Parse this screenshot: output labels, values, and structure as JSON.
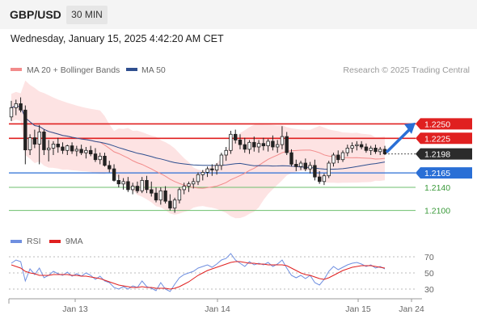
{
  "header": {
    "symbol": "GBP/USD",
    "timeframe": "30 MIN",
    "datetime": "Wednesday, January 15, 2025 4:42:20 AM CET"
  },
  "legend": {
    "ma20_bb": "MA 20 + Bollinger Bands",
    "ma50": "MA 50",
    "copyright": "Research © 2025 Trading Central",
    "rsi": "RSI",
    "rsi_ma": "9MA"
  },
  "colors": {
    "up_candle": "#ffffff",
    "down_candle": "#222222",
    "bollinger_fill": "#fde3e3",
    "ma20": "#f28b8b",
    "ma50": "#2f4f8f",
    "resistance": "#e02020",
    "support_blue": "#2a6fd6",
    "support_green": "#6dbf6d",
    "last_price": "#2b2b2b",
    "arrow": "#2a6fd6",
    "rsi": "#6f8fe0",
    "rsi_ma": "#e02020"
  },
  "chart_data": [
    {
      "type": "candlestick",
      "ylim": [
        2.084,
        1.2308
      ],
      "price_range": [
        1.207,
        1.2308
      ],
      "levels": [
        {
          "label": "1.2250",
          "value": 1.225,
          "kind": "resistance"
        },
        {
          "label": "1.2225",
          "value": 1.2225,
          "kind": "resistance"
        },
        {
          "label": "1.2198",
          "value": 1.2198,
          "kind": "last"
        },
        {
          "label": "1.2165",
          "value": 1.2165,
          "kind": "support_blue"
        },
        {
          "label": "1.2140",
          "value": 1.214,
          "kind": "support_green"
        },
        {
          "label": "1.2100",
          "value": 1.21,
          "kind": "support_green"
        }
      ],
      "x_labels": [
        "Jan 13",
        "Jan 14",
        "Jan 15",
        "Jan 24"
      ],
      "ohlc_approx": [
        [
          1.2262,
          1.229,
          1.2255,
          1.2278
        ],
        [
          1.2278,
          1.2292,
          1.2265,
          1.2285
        ],
        [
          1.2285,
          1.2296,
          1.227,
          1.2274
        ],
        [
          1.2274,
          1.2282,
          1.218,
          1.2205
        ],
        [
          1.2205,
          1.2232,
          1.2196,
          1.2226
        ],
        [
          1.2226,
          1.224,
          1.2208,
          1.2215
        ],
        [
          1.2215,
          1.2248,
          1.218,
          1.2236
        ],
        [
          1.2236,
          1.224,
          1.2196,
          1.2205
        ],
        [
          1.2205,
          1.2222,
          1.2185,
          1.2208
        ],
        [
          1.2208,
          1.222,
          1.2196,
          1.2215
        ],
        [
          1.2215,
          1.2226,
          1.22,
          1.221
        ],
        [
          1.221,
          1.2218,
          1.2198,
          1.2204
        ],
        [
          1.2204,
          1.2214,
          1.2196,
          1.2212
        ],
        [
          1.2212,
          1.2218,
          1.2198,
          1.2203
        ],
        [
          1.2203,
          1.2212,
          1.2194,
          1.2206
        ],
        [
          1.2206,
          1.2214,
          1.2196,
          1.22
        ],
        [
          1.22,
          1.221,
          1.219,
          1.2204
        ],
        [
          1.2204,
          1.2212,
          1.2194,
          1.2198
        ],
        [
          1.2198,
          1.2208,
          1.2184,
          1.2188
        ],
        [
          1.2188,
          1.22,
          1.218,
          1.2194
        ],
        [
          1.2194,
          1.22,
          1.2176,
          1.2178
        ],
        [
          1.2178,
          1.2186,
          1.2166,
          1.2172
        ],
        [
          1.2172,
          1.218,
          1.215,
          1.2152
        ],
        [
          1.2152,
          1.2162,
          1.214,
          1.2146
        ],
        [
          1.2146,
          1.2156,
          1.2136,
          1.215
        ],
        [
          1.215,
          1.2158,
          1.2132,
          1.2136
        ],
        [
          1.2136,
          1.2148,
          1.2128,
          1.2142
        ],
        [
          1.2142,
          1.215,
          1.213,
          1.2134
        ],
        [
          1.2134,
          1.2158,
          1.213,
          1.2152
        ],
        [
          1.2152,
          1.216,
          1.213,
          1.2136
        ],
        [
          1.2136,
          1.215,
          1.2124,
          1.213
        ],
        [
          1.213,
          1.214,
          1.2114,
          1.2118
        ],
        [
          1.2118,
          1.214,
          1.211,
          1.2134
        ],
        [
          1.2134,
          1.2142,
          1.2112,
          1.2116
        ],
        [
          1.2116,
          1.2128,
          1.21,
          1.2104
        ],
        [
          1.2104,
          1.2122,
          1.2096,
          1.2118
        ],
        [
          1.2118,
          1.214,
          1.2112,
          1.2136
        ],
        [
          1.2136,
          1.2148,
          1.2128,
          1.2142
        ],
        [
          1.2142,
          1.215,
          1.2132,
          1.2146
        ],
        [
          1.2146,
          1.2156,
          1.2138,
          1.215
        ],
        [
          1.215,
          1.2166,
          1.2144,
          1.2162
        ],
        [
          1.2162,
          1.217,
          1.2152,
          1.2166
        ],
        [
          1.2166,
          1.2176,
          1.2158,
          1.2172
        ],
        [
          1.2172,
          1.218,
          1.216,
          1.217
        ],
        [
          1.217,
          1.2182,
          1.2162,
          1.2178
        ],
        [
          1.2178,
          1.22,
          1.217,
          1.2196
        ],
        [
          1.2196,
          1.221,
          1.2186,
          1.2204
        ],
        [
          1.2204,
          1.2238,
          1.2198,
          1.2232
        ],
        [
          1.2232,
          1.224,
          1.2216,
          1.2222
        ],
        [
          1.2222,
          1.2232,
          1.2206,
          1.2214
        ],
        [
          1.2214,
          1.2226,
          1.22,
          1.2206
        ],
        [
          1.2206,
          1.2222,
          1.2198,
          1.2218
        ],
        [
          1.2218,
          1.2228,
          1.2202,
          1.221
        ],
        [
          1.221,
          1.2222,
          1.22,
          1.2216
        ],
        [
          1.2216,
          1.2226,
          1.2204,
          1.2212
        ],
        [
          1.2212,
          1.2224,
          1.2202,
          1.222
        ],
        [
          1.222,
          1.223,
          1.2204,
          1.221
        ],
        [
          1.221,
          1.2222,
          1.22,
          1.2214
        ],
        [
          1.2214,
          1.2246,
          1.2206,
          1.2228
        ],
        [
          1.2228,
          1.2236,
          1.2196,
          1.22
        ],
        [
          1.22,
          1.2206,
          1.2176,
          1.218
        ],
        [
          1.218,
          1.2188,
          1.2168,
          1.2176
        ],
        [
          1.2176,
          1.2186,
          1.217,
          1.2182
        ],
        [
          1.2182,
          1.219,
          1.2168,
          1.2172
        ],
        [
          1.2172,
          1.2184,
          1.2164,
          1.2178
        ],
        [
          1.2178,
          1.2188,
          1.2152,
          1.2158
        ],
        [
          1.2158,
          1.2168,
          1.2146,
          1.215
        ],
        [
          1.215,
          1.2164,
          1.2144,
          1.216
        ],
        [
          1.216,
          1.2186,
          1.2156,
          1.2182
        ],
        [
          1.2182,
          1.22,
          1.2176,
          1.2196
        ],
        [
          1.2196,
          1.2204,
          1.2182,
          1.2188
        ],
        [
          1.2188,
          1.2204,
          1.2184,
          1.22
        ],
        [
          1.22,
          1.2214,
          1.2194,
          1.2208
        ],
        [
          1.2208,
          1.2218,
          1.22,
          1.2212
        ],
        [
          1.2212,
          1.222,
          1.2204,
          1.2214
        ],
        [
          1.2214,
          1.222,
          1.2206,
          1.221
        ],
        [
          1.221,
          1.2216,
          1.22,
          1.2204
        ],
        [
          1.2204,
          1.2212,
          1.2196,
          1.2208
        ],
        [
          1.2208,
          1.2214,
          1.2198,
          1.2202
        ],
        [
          1.2202,
          1.221,
          1.2196,
          1.2206
        ],
        [
          1.2206,
          1.2212,
          1.2196,
          1.2198
        ]
      ]
    },
    {
      "type": "line",
      "name": "RSI",
      "ylim": [
        20,
        80
      ],
      "y_ticks": [
        30,
        50,
        70
      ],
      "x_labels": [
        "Jan 13",
        "Jan 14",
        "Jan 15",
        "Jan 24"
      ],
      "rsi": [
        62,
        66,
        64,
        40,
        55,
        48,
        56,
        44,
        47,
        52,
        49,
        47,
        51,
        46,
        49,
        46,
        50,
        47,
        42,
        46,
        40,
        38,
        32,
        30,
        33,
        30,
        34,
        32,
        40,
        33,
        31,
        28,
        38,
        30,
        27,
        36,
        44,
        48,
        50,
        52,
        56,
        58,
        60,
        57,
        61,
        66,
        68,
        74,
        66,
        62,
        58,
        64,
        60,
        62,
        60,
        63,
        58,
        61,
        66,
        56,
        47,
        44,
        47,
        43,
        47,
        38,
        35,
        42,
        52,
        58,
        54,
        57,
        60,
        62,
        63,
        61,
        58,
        60,
        56,
        58,
        55
      ],
      "rsi_ma": [
        60,
        58,
        56,
        52,
        50,
        49,
        47,
        47,
        47,
        48,
        48,
        48,
        48,
        47,
        47,
        46,
        46,
        45,
        44,
        43,
        41,
        39,
        37,
        35,
        34,
        33,
        32,
        32,
        33,
        32,
        32,
        31,
        31,
        31,
        30,
        31,
        33,
        36,
        39,
        43,
        47,
        50,
        53,
        55,
        57,
        59,
        61,
        63,
        64,
        64,
        63,
        62,
        62,
        61,
        61,
        60,
        60,
        60,
        60,
        59,
        56,
        53,
        50,
        48,
        47,
        45,
        43,
        42,
        44,
        47,
        50,
        53,
        55,
        57,
        58,
        59,
        59,
        59,
        58,
        57,
        56
      ]
    }
  ]
}
